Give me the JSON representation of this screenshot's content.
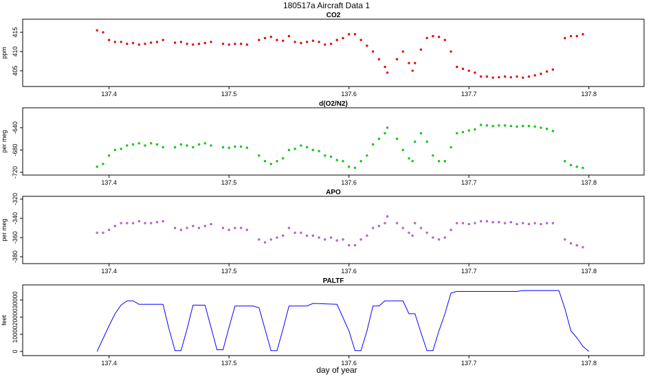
{
  "title": "180517a   Aircraft Data 1",
  "xlabel": "day of year",
  "chart_data": [
    {
      "type": "scatter",
      "title": "CO2",
      "ylabel": "ppm",
      "xlim": [
        137.328,
        137.846
      ],
      "ylim": [
        400.9,
        418.4
      ],
      "xticks": [
        137.4,
        137.5,
        137.6,
        137.7,
        137.8
      ],
      "yticks": [
        405,
        410,
        415
      ],
      "series": [
        {
          "name": "CO2",
          "color": "#ff0000",
          "x": [
            137.39,
            137.395,
            137.4,
            137.405,
            137.41,
            137.415,
            137.42,
            137.425,
            137.43,
            137.435,
            137.44,
            137.445,
            137.455,
            137.46,
            137.465,
            137.47,
            137.475,
            137.48,
            137.485,
            137.495,
            137.5,
            137.505,
            137.51,
            137.515,
            137.525,
            137.53,
            137.535,
            137.54,
            137.545,
            137.55,
            137.555,
            137.56,
            137.565,
            137.57,
            137.575,
            137.58,
            137.585,
            137.59,
            137.595,
            137.6,
            137.605,
            137.61,
            137.615,
            137.62,
            137.625,
            137.63,
            137.632,
            137.64,
            137.645,
            137.65,
            137.653,
            137.655,
            137.66,
            137.665,
            137.67,
            137.675,
            137.68,
            137.685,
            137.69,
            137.695,
            137.7,
            137.705,
            137.71,
            137.715,
            137.72,
            137.725,
            137.73,
            137.735,
            137.74,
            137.745,
            137.75,
            137.755,
            137.76,
            137.765,
            137.77,
            137.78,
            137.785,
            137.79,
            137.795
          ],
          "values": [
            415.5,
            415,
            413,
            412.5,
            412.5,
            412,
            412.2,
            411.8,
            412,
            412.3,
            412.5,
            413,
            412.3,
            412.5,
            412,
            411.8,
            412,
            412.2,
            412.5,
            412,
            411.8,
            412,
            412,
            411.8,
            413,
            413.5,
            413.8,
            413,
            412.8,
            414,
            412.5,
            412.2,
            412.5,
            412.8,
            412.5,
            411.8,
            412,
            413,
            413.5,
            414.5,
            414.5,
            413,
            411.5,
            410,
            408,
            406,
            404.5,
            408,
            410,
            407,
            405,
            407,
            410.5,
            413.5,
            414,
            413.8,
            413,
            410,
            406,
            405.5,
            405,
            404.5,
            403.5,
            403.5,
            403.2,
            403.3,
            403.5,
            403.3,
            403.5,
            403.2,
            403.5,
            403.8,
            404.2,
            404.8,
            405.3,
            413.5,
            414,
            414,
            414.5
          ]
        }
      ]
    },
    {
      "type": "scatter",
      "title": "d(O2/N2)",
      "ylabel": "per meg",
      "xlim": [
        137.328,
        137.846
      ],
      "ylim": [
        -724.9,
        -604.3
      ],
      "xticks": [
        137.4,
        137.5,
        137.6,
        137.7,
        137.8
      ],
      "yticks": [
        -720,
        -680,
        -640
      ],
      "series": [
        {
          "name": "d(O2/N2)",
          "color": "#00e000",
          "x": [
            137.39,
            137.395,
            137.4,
            137.405,
            137.41,
            137.415,
            137.42,
            137.425,
            137.43,
            137.435,
            137.44,
            137.445,
            137.455,
            137.46,
            137.465,
            137.47,
            137.475,
            137.48,
            137.485,
            137.495,
            137.5,
            137.505,
            137.51,
            137.515,
            137.525,
            137.53,
            137.535,
            137.54,
            137.545,
            137.55,
            137.555,
            137.56,
            137.565,
            137.57,
            137.575,
            137.58,
            137.585,
            137.59,
            137.595,
            137.6,
            137.605,
            137.61,
            137.615,
            137.62,
            137.625,
            137.63,
            137.632,
            137.64,
            137.645,
            137.65,
            137.653,
            137.655,
            137.66,
            137.665,
            137.67,
            137.675,
            137.68,
            137.685,
            137.69,
            137.695,
            137.7,
            137.705,
            137.71,
            137.715,
            137.72,
            137.725,
            137.73,
            137.735,
            137.74,
            137.745,
            137.75,
            137.755,
            137.76,
            137.765,
            137.77,
            137.78,
            137.785,
            137.79,
            137.795
          ],
          "values": [
            -710,
            -705,
            -690,
            -680,
            -678,
            -672,
            -670,
            -668,
            -672,
            -668,
            -670,
            -675,
            -675,
            -670,
            -672,
            -675,
            -670,
            -668,
            -672,
            -675,
            -676,
            -674,
            -674,
            -676,
            -690,
            -700,
            -705,
            -700,
            -695,
            -680,
            -678,
            -672,
            -675,
            -680,
            -682,
            -690,
            -692,
            -698,
            -700,
            -710,
            -712,
            -700,
            -690,
            -670,
            -660,
            -650,
            -640,
            -660,
            -680,
            -695,
            -700,
            -665,
            -650,
            -665,
            -690,
            -700,
            -700,
            -675,
            -650,
            -648,
            -645,
            -643,
            -635,
            -636,
            -637,
            -636,
            -636,
            -637,
            -638,
            -637,
            -637,
            -638,
            -640,
            -642,
            -646,
            -700,
            -707,
            -710,
            -712
          ]
        }
      ]
    },
    {
      "type": "scatter",
      "title": "APO",
      "ylabel": "per meg",
      "xlim": [
        137.328,
        137.846
      ],
      "ylim": [
        -387.1,
        -317.1
      ],
      "xticks": [
        137.4,
        137.5,
        137.6,
        137.7,
        137.8
      ],
      "yticks": [
        -380,
        -360,
        -340,
        -320
      ],
      "series": [
        {
          "name": "APO",
          "color": "#c060f0",
          "x": [
            137.39,
            137.395,
            137.4,
            137.405,
            137.41,
            137.415,
            137.42,
            137.425,
            137.43,
            137.435,
            137.44,
            137.445,
            137.455,
            137.46,
            137.465,
            137.47,
            137.475,
            137.48,
            137.485,
            137.495,
            137.5,
            137.505,
            137.51,
            137.515,
            137.525,
            137.53,
            137.535,
            137.54,
            137.545,
            137.55,
            137.555,
            137.56,
            137.565,
            137.57,
            137.575,
            137.58,
            137.585,
            137.59,
            137.595,
            137.6,
            137.605,
            137.61,
            137.615,
            137.62,
            137.625,
            137.63,
            137.632,
            137.64,
            137.645,
            137.65,
            137.653,
            137.655,
            137.66,
            137.665,
            137.67,
            137.675,
            137.68,
            137.685,
            137.69,
            137.695,
            137.7,
            137.705,
            137.71,
            137.715,
            137.72,
            137.725,
            137.73,
            137.735,
            137.74,
            137.745,
            137.75,
            137.755,
            137.76,
            137.765,
            137.77,
            137.78,
            137.785,
            137.79,
            137.795
          ],
          "values": [
            -355,
            -355,
            -352,
            -348,
            -345,
            -345,
            -345,
            -343,
            -345,
            -345,
            -344,
            -343,
            -350,
            -352,
            -350,
            -348,
            -350,
            -348,
            -346,
            -350,
            -352,
            -350,
            -350,
            -352,
            -362,
            -365,
            -362,
            -360,
            -358,
            -350,
            -355,
            -355,
            -358,
            -358,
            -360,
            -362,
            -360,
            -363,
            -362,
            -368,
            -368,
            -362,
            -358,
            -350,
            -348,
            -345,
            -338,
            -345,
            -350,
            -355,
            -358,
            -345,
            -350,
            -355,
            -360,
            -362,
            -360,
            -352,
            -345,
            -345,
            -346,
            -345,
            -343,
            -343,
            -344,
            -344,
            -345,
            -344,
            -346,
            -345,
            -346,
            -345,
            -346,
            -345,
            -345,
            -362,
            -366,
            -368,
            -370
          ]
        }
      ]
    },
    {
      "type": "line",
      "title": "PALTF",
      "ylabel": "feet",
      "xlim": [
        137.328,
        137.846
      ],
      "ylim": [
        -2400,
        38800
      ],
      "xticks": [
        137.4,
        137.5,
        137.6,
        137.7,
        137.8
      ],
      "yticks": [
        0,
        10000,
        20000,
        30000
      ],
      "series": [
        {
          "name": "PALTF",
          "color": "#0000ff",
          "x": [
            137.39,
            137.4,
            137.405,
            137.41,
            137.415,
            137.42,
            137.425,
            137.445,
            137.45,
            137.455,
            137.46,
            137.465,
            137.47,
            137.48,
            137.485,
            137.49,
            137.495,
            137.5,
            137.505,
            137.52,
            137.525,
            137.53,
            137.535,
            137.54,
            137.545,
            137.55,
            137.565,
            137.57,
            137.59,
            137.6,
            137.605,
            137.61,
            137.615,
            137.62,
            137.625,
            137.63,
            137.645,
            137.65,
            137.655,
            137.66,
            137.665,
            137.67,
            137.675,
            137.68,
            137.685,
            137.69,
            137.74,
            137.745,
            137.775,
            137.78,
            137.785,
            137.79,
            137.795,
            137.8
          ],
          "values": [
            0,
            15000,
            22000,
            27000,
            29500,
            29500,
            27500,
            27500,
            13000,
            500,
            500,
            13000,
            27000,
            27000,
            14000,
            1000,
            1000,
            14000,
            26500,
            26500,
            25500,
            13000,
            500,
            500,
            13000,
            26500,
            26500,
            28000,
            27500,
            12000,
            500,
            500,
            12000,
            26500,
            26500,
            29500,
            29500,
            22000,
            22000,
            11000,
            500,
            500,
            12000,
            22000,
            34000,
            35000,
            35000,
            35500,
            35500,
            25000,
            12000,
            8000,
            3000,
            0
          ]
        }
      ]
    }
  ]
}
